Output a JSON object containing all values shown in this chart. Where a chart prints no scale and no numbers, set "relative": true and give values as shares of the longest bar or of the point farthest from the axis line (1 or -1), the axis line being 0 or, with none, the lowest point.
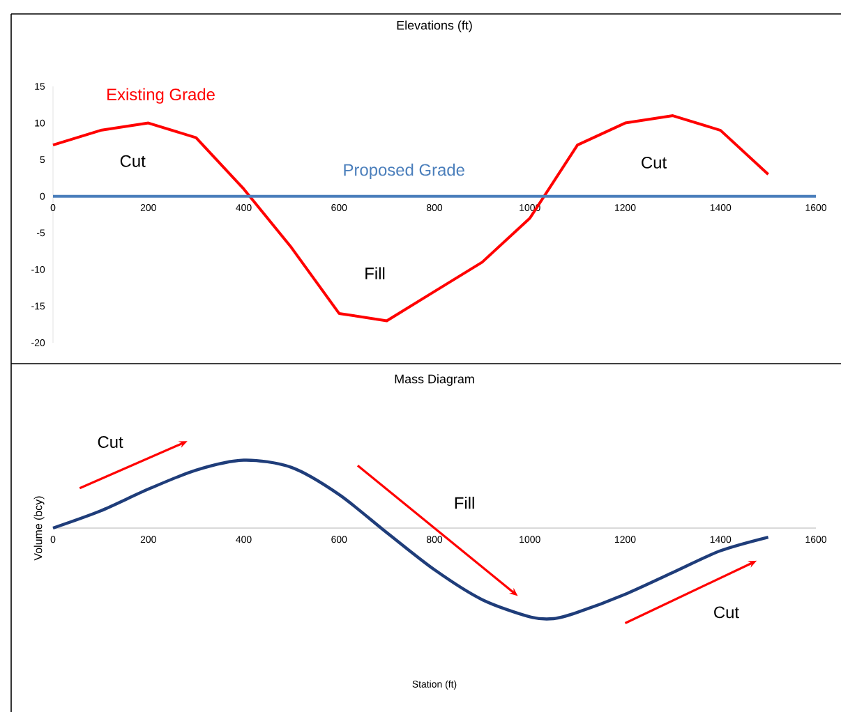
{
  "chart_data": [
    {
      "type": "line",
      "title": "Elevations (ft)",
      "marker": "none",
      "xlim": [
        0,
        1600
      ],
      "xticks": [
        0,
        200,
        400,
        600,
        800,
        1000,
        1200,
        1400,
        1600
      ],
      "ylim": [
        -20,
        15
      ],
      "yticks": [
        -20,
        -15,
        -10,
        -5,
        0,
        5,
        10,
        15
      ],
      "series": [
        {
          "name": "Existing Grade",
          "color": "#ff0000",
          "x": [
            0,
            100,
            200,
            300,
            400,
            500,
            600,
            700,
            800,
            900,
            1000,
            1100,
            1200,
            1300,
            1400,
            1500
          ],
          "values": [
            7,
            9,
            10,
            8,
            1,
            -7,
            -16,
            -17,
            -13,
            -9,
            -3,
            7,
            10,
            11,
            9,
            3
          ]
        },
        {
          "name": "Proposed Grade",
          "color": "#4a7ebb",
          "x": [
            0,
            1600
          ],
          "values": [
            0,
            0
          ]
        }
      ],
      "annotations": [
        "Cut",
        "Fill",
        "Cut"
      ]
    },
    {
      "type": "line",
      "title": "Mass Diagram",
      "xlabel": "Station (ft)",
      "ylabel": "Volume (bcy)",
      "relative": true,
      "marker": "none",
      "xlim": [
        0,
        1600
      ],
      "xticks": [
        0,
        200,
        400,
        600,
        800,
        1000,
        1200,
        1400,
        1600
      ],
      "series": [
        {
          "color": "#1f3d7a",
          "x": [
            0,
            100,
            200,
            300,
            400,
            500,
            600,
            700,
            800,
            900,
            1000,
            1050,
            1100,
            1200,
            1300,
            1400,
            1500
          ],
          "values": [
            0,
            0.19,
            0.43,
            0.64,
            0.75,
            0.67,
            0.37,
            -0.05,
            -0.46,
            -0.79,
            -0.98,
            -1,
            -0.93,
            -0.73,
            -0.49,
            -0.25,
            -0.1
          ]
        }
      ],
      "annotations": [
        "Cut",
        "Fill",
        "Cut"
      ]
    }
  ]
}
